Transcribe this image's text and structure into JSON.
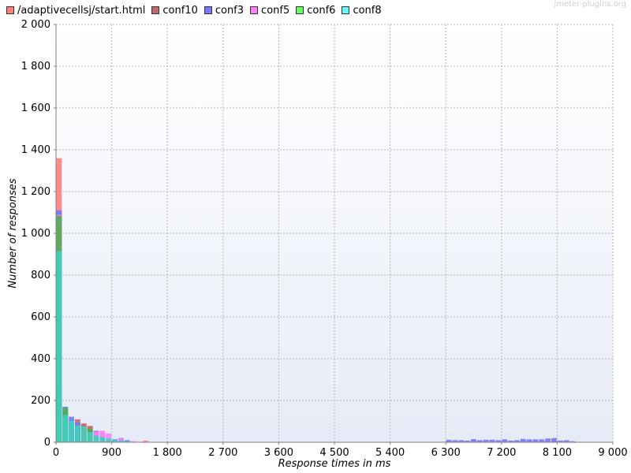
{
  "watermark": "jmeter-plugins.org",
  "colors": {
    "plot_bg_top": "#ffffff",
    "plot_bg_bottom": "#e6ecf7",
    "grid": "#b8b8b8",
    "axis": "#7f7f7f"
  },
  "chart_data": {
    "type": "bar",
    "stacked": true,
    "title": "",
    "xlabel": "Response times in ms",
    "ylabel": "Number of responses",
    "xlim": [
      0,
      9000
    ],
    "ylim": [
      0,
      2000
    ],
    "bin_width": 100,
    "grid": true,
    "legend_position": "top-left",
    "x_ticks": [
      "0",
      "900",
      "1 800",
      "2 700",
      "3 600",
      "4 500",
      "5 400",
      "6 300",
      "7 200",
      "8 100",
      "9 000"
    ],
    "x_tick_values": [
      0,
      900,
      1800,
      2700,
      3600,
      4500,
      5400,
      6300,
      7200,
      8100,
      9000
    ],
    "y_ticks": [
      "0",
      "200",
      "400",
      "600",
      "800",
      "1 000",
      "1 200",
      "1 400",
      "1 600",
      "1 800",
      "2 000"
    ],
    "y_tick_values": [
      0,
      200,
      400,
      600,
      800,
      1000,
      1200,
      1400,
      1600,
      1800,
      2000
    ],
    "series": [
      {
        "name": "/adaptivecellsj/start.html",
        "color": "#ff7f7f",
        "points": [
          [
            0,
            1360
          ],
          [
            100,
            165
          ],
          [
            400,
            88
          ],
          [
            500,
            76
          ],
          [
            600,
            50
          ],
          [
            700,
            48
          ],
          [
            1000,
            12
          ],
          [
            1400,
            8
          ]
        ]
      },
      {
        "name": "conf10",
        "color": "#c26a6a",
        "points": [
          [
            0,
            1100
          ],
          [
            300,
            110
          ],
          [
            400,
            90
          ],
          [
            500,
            78
          ]
        ]
      },
      {
        "name": "conf3",
        "color": "#7777ff",
        "points": [
          [
            0,
            1110
          ],
          [
            100,
            170
          ],
          [
            200,
            122
          ],
          [
            300,
            95
          ],
          [
            600,
            55
          ],
          [
            900,
            14
          ],
          [
            1000,
            20
          ],
          [
            1100,
            10
          ],
          [
            6300,
            12
          ],
          [
            6400,
            10
          ],
          [
            6500,
            10
          ],
          [
            6600,
            8
          ],
          [
            6700,
            15
          ],
          [
            6800,
            10
          ],
          [
            6900,
            12
          ],
          [
            7000,
            12
          ],
          [
            7100,
            10
          ],
          [
            7200,
            14
          ],
          [
            7300,
            8
          ],
          [
            7400,
            10
          ],
          [
            7500,
            16
          ],
          [
            7600,
            14
          ],
          [
            7700,
            14
          ],
          [
            7800,
            14
          ],
          [
            7900,
            18
          ],
          [
            8000,
            20
          ],
          [
            8100,
            8
          ],
          [
            8200,
            10
          ],
          [
            8300,
            5
          ]
        ]
      },
      {
        "name": "conf5",
        "color": "#ff7fff",
        "points": [
          [
            0,
            1090
          ],
          [
            600,
            50
          ],
          [
            700,
            55
          ],
          [
            800,
            42
          ],
          [
            1000,
            18
          ],
          [
            1200,
            5
          ],
          [
            1400,
            4
          ]
        ]
      },
      {
        "name": "conf6",
        "color": "#4faf4f",
        "points": [
          [
            0,
            1085
          ],
          [
            100,
            165
          ],
          [
            500,
            65
          ]
        ]
      },
      {
        "name": "conf8",
        "color": "#3fcfbf",
        "points": [
          [
            0,
            915
          ],
          [
            100,
            130
          ],
          [
            200,
            100
          ],
          [
            300,
            80
          ],
          [
            400,
            75
          ],
          [
            500,
            48
          ],
          [
            600,
            32
          ],
          [
            700,
            25
          ],
          [
            800,
            18
          ],
          [
            900,
            10
          ],
          [
            1000,
            8
          ],
          [
            1100,
            5
          ]
        ]
      }
    ]
  }
}
